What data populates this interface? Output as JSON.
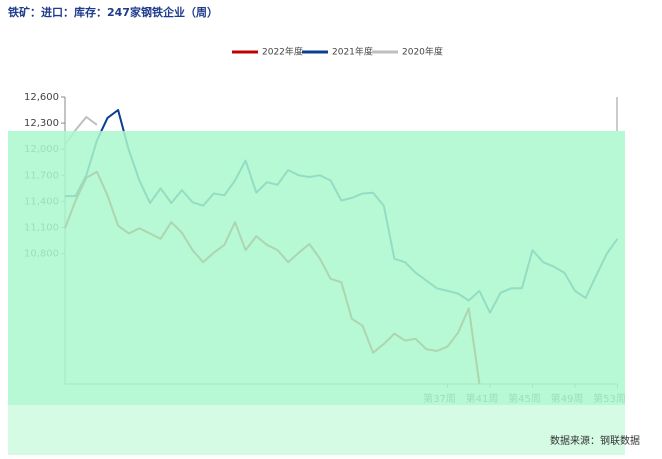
{
  "chart_data": {
    "type": "line",
    "title": "铁矿：进口：库存：247家钢铁企业（周）",
    "source": "数据来源：钢联数据",
    "x": [
      1,
      2,
      3,
      4,
      5,
      6,
      7,
      8,
      9,
      10,
      11,
      12,
      13,
      14,
      15,
      16,
      17,
      18,
      19,
      20,
      21,
      22,
      23,
      24,
      25,
      26,
      27,
      28,
      29,
      30,
      31,
      32,
      33,
      34,
      35,
      36,
      37,
      38,
      39,
      40,
      41,
      42,
      43,
      44,
      45,
      46,
      47,
      48,
      49,
      50,
      51,
      52,
      53
    ],
    "xlim": [
      1,
      53
    ],
    "xticks": [
      {
        "value": 37,
        "label": "第37周"
      },
      {
        "value": 41,
        "label": "第41周"
      },
      {
        "value": 45,
        "label": "第45周"
      },
      {
        "value": 49,
        "label": "第49周"
      },
      {
        "value": 53,
        "label": "第53周"
      }
    ],
    "ylim": [
      9300,
      12600
    ],
    "yticks": [
      {
        "value": 12600,
        "label": "12,600"
      },
      {
        "value": 12300,
        "label": "12,300"
      },
      {
        "value": 12000,
        "label": "12,000"
      },
      {
        "value": 11700,
        "label": "11,700"
      },
      {
        "value": 11400,
        "label": "11,400"
      },
      {
        "value": 11100,
        "label": "11,100"
      },
      {
        "value": 10800,
        "label": "10,800"
      }
    ],
    "series": [
      {
        "name": "2022年度",
        "color": "#c00000",
        "values": [
          11090,
          11410,
          11670,
          11740,
          11470,
          11120,
          11030,
          11090,
          11030,
          10970,
          11160,
          11040,
          10840,
          10700,
          10810,
          10900,
          11160,
          10840,
          11000,
          10900,
          10840,
          10700,
          10810,
          10910,
          10740,
          10510,
          10470,
          10050,
          9970,
          9660,
          9760,
          9880,
          9800,
          9820,
          9700,
          9680,
          9730,
          9890,
          10170,
          9300,
          null,
          null,
          null,
          null,
          null,
          null,
          null,
          null,
          null,
          null,
          null,
          null,
          null
        ]
      },
      {
        "name": "2021年度",
        "color": "#0b3d91",
        "values": [
          11460,
          11460,
          11700,
          12100,
          12360,
          12450,
          11990,
          11640,
          11380,
          11550,
          11380,
          11530,
          11390,
          11350,
          11490,
          11470,
          11640,
          11870,
          11500,
          11620,
          11590,
          11760,
          11700,
          11680,
          11700,
          11640,
          11410,
          11440,
          11490,
          11500,
          11350,
          10740,
          10700,
          10580,
          10490,
          10400,
          10370,
          10340,
          10260,
          10370,
          10120,
          10350,
          10400,
          10400,
          10840,
          10700,
          10650,
          10580,
          10370,
          10290,
          10550,
          10800,
          10970
        ]
      },
      {
        "name": "2020年度",
        "color": "#bfbfbf",
        "values": [
          12050,
          12220,
          12370,
          12280,
          null,
          null,
          null,
          null,
          null,
          null,
          null,
          null,
          null,
          null,
          null,
          null,
          null,
          null,
          null,
          null,
          null,
          null,
          null,
          null,
          null,
          null,
          null,
          null,
          null,
          null,
          null,
          null,
          null,
          null,
          null,
          null,
          null,
          null,
          null,
          null,
          null,
          null,
          null,
          null,
          null,
          null,
          null,
          null,
          null,
          null,
          null,
          null,
          null
        ]
      }
    ]
  }
}
